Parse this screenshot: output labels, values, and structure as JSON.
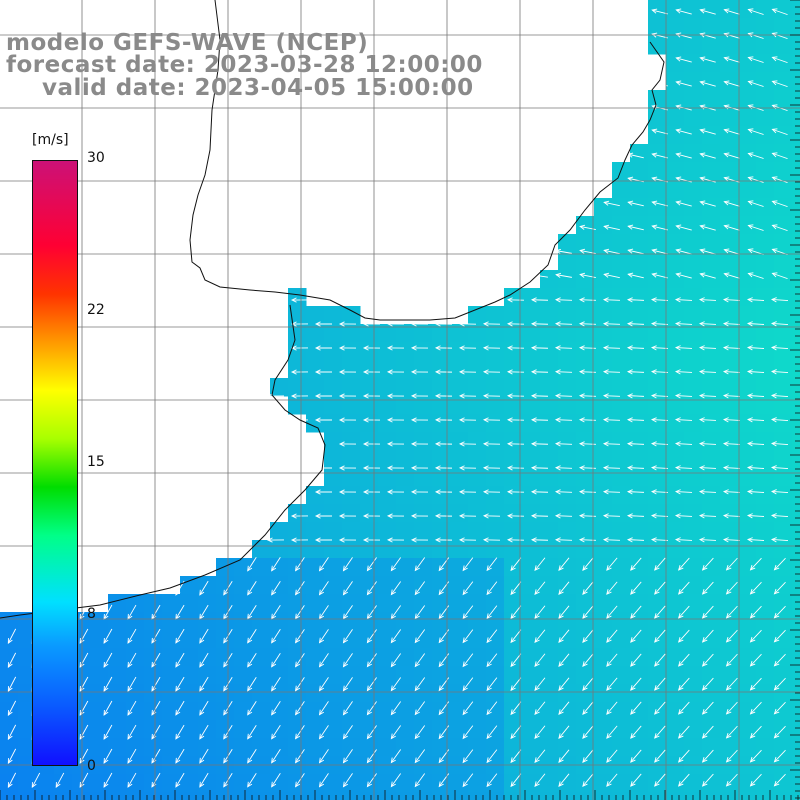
{
  "title": {
    "model": "modelo GEFS-WAVE (NCEP)",
    "forecast": "forecast date: 2023-03-28 12:00:00",
    "valid": "valid date: 2023-04-05 15:00:00"
  },
  "colorbar": {
    "unit": "[m/s]",
    "ticks": [
      "30",
      "22",
      "15",
      "8",
      "0"
    ],
    "colors": [
      "#1010ff",
      "#0a9cff",
      "#00e0ff",
      "#00dd00",
      "#ffff00",
      "#ff9900",
      "#ff0033",
      "#cc1177"
    ]
  },
  "map": {
    "land_color": "#ffffff",
    "sea_color_low": "#0a7df2",
    "sea_color_high": "#10f0c0",
    "grid_color": "#777777",
    "arrow_color": "#ffffff"
  }
}
